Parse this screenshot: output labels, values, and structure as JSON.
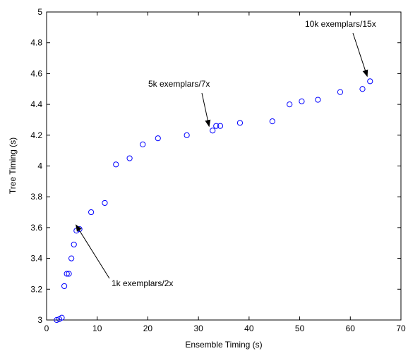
{
  "chart_data": {
    "type": "scatter",
    "title": "",
    "xlabel": "Ensemble Timing (s)",
    "ylabel": "Tree Timing (s)",
    "xlim": [
      0,
      70
    ],
    "ylim": [
      3,
      5
    ],
    "xticks": [
      0,
      10,
      20,
      30,
      40,
      50,
      60,
      70
    ],
    "yticks": [
      3,
      3.2,
      3.4,
      3.6,
      3.8,
      4,
      4.2,
      4.4,
      4.6,
      4.8,
      5
    ],
    "grid": false,
    "marker": "circle-open",
    "marker_color": "#0000ff",
    "points": [
      {
        "x": 2.0,
        "y": 3.0
      },
      {
        "x": 2.5,
        "y": 3.005
      },
      {
        "x": 3.0,
        "y": 3.015
      },
      {
        "x": 3.5,
        "y": 3.22
      },
      {
        "x": 4.0,
        "y": 3.3
      },
      {
        "x": 4.4,
        "y": 3.3
      },
      {
        "x": 4.9,
        "y": 3.4
      },
      {
        "x": 5.4,
        "y": 3.49
      },
      {
        "x": 5.9,
        "y": 3.58
      },
      {
        "x": 6.5,
        "y": 3.59
      },
      {
        "x": 8.8,
        "y": 3.7
      },
      {
        "x": 11.5,
        "y": 3.76
      },
      {
        "x": 13.7,
        "y": 4.01
      },
      {
        "x": 16.4,
        "y": 4.05
      },
      {
        "x": 19.0,
        "y": 4.14
      },
      {
        "x": 22.0,
        "y": 4.18
      },
      {
        "x": 27.7,
        "y": 4.2
      },
      {
        "x": 32.8,
        "y": 4.23
      },
      {
        "x": 33.5,
        "y": 4.26
      },
      {
        "x": 34.3,
        "y": 4.26
      },
      {
        "x": 38.2,
        "y": 4.28
      },
      {
        "x": 44.6,
        "y": 4.29
      },
      {
        "x": 48.0,
        "y": 4.4
      },
      {
        "x": 50.4,
        "y": 4.42
      },
      {
        "x": 53.6,
        "y": 4.43
      },
      {
        "x": 58.0,
        "y": 4.48
      },
      {
        "x": 62.4,
        "y": 4.5
      },
      {
        "x": 63.9,
        "y": 4.55
      }
    ],
    "annotations": [
      {
        "text": "1k exemplars/2x",
        "x": 6.5,
        "y": 3.59
      },
      {
        "text": "5k exemplars/7x",
        "x": 32.8,
        "y": 4.23
      },
      {
        "text": "10k exemplars/15x",
        "x": 63.9,
        "y": 4.55
      }
    ]
  }
}
